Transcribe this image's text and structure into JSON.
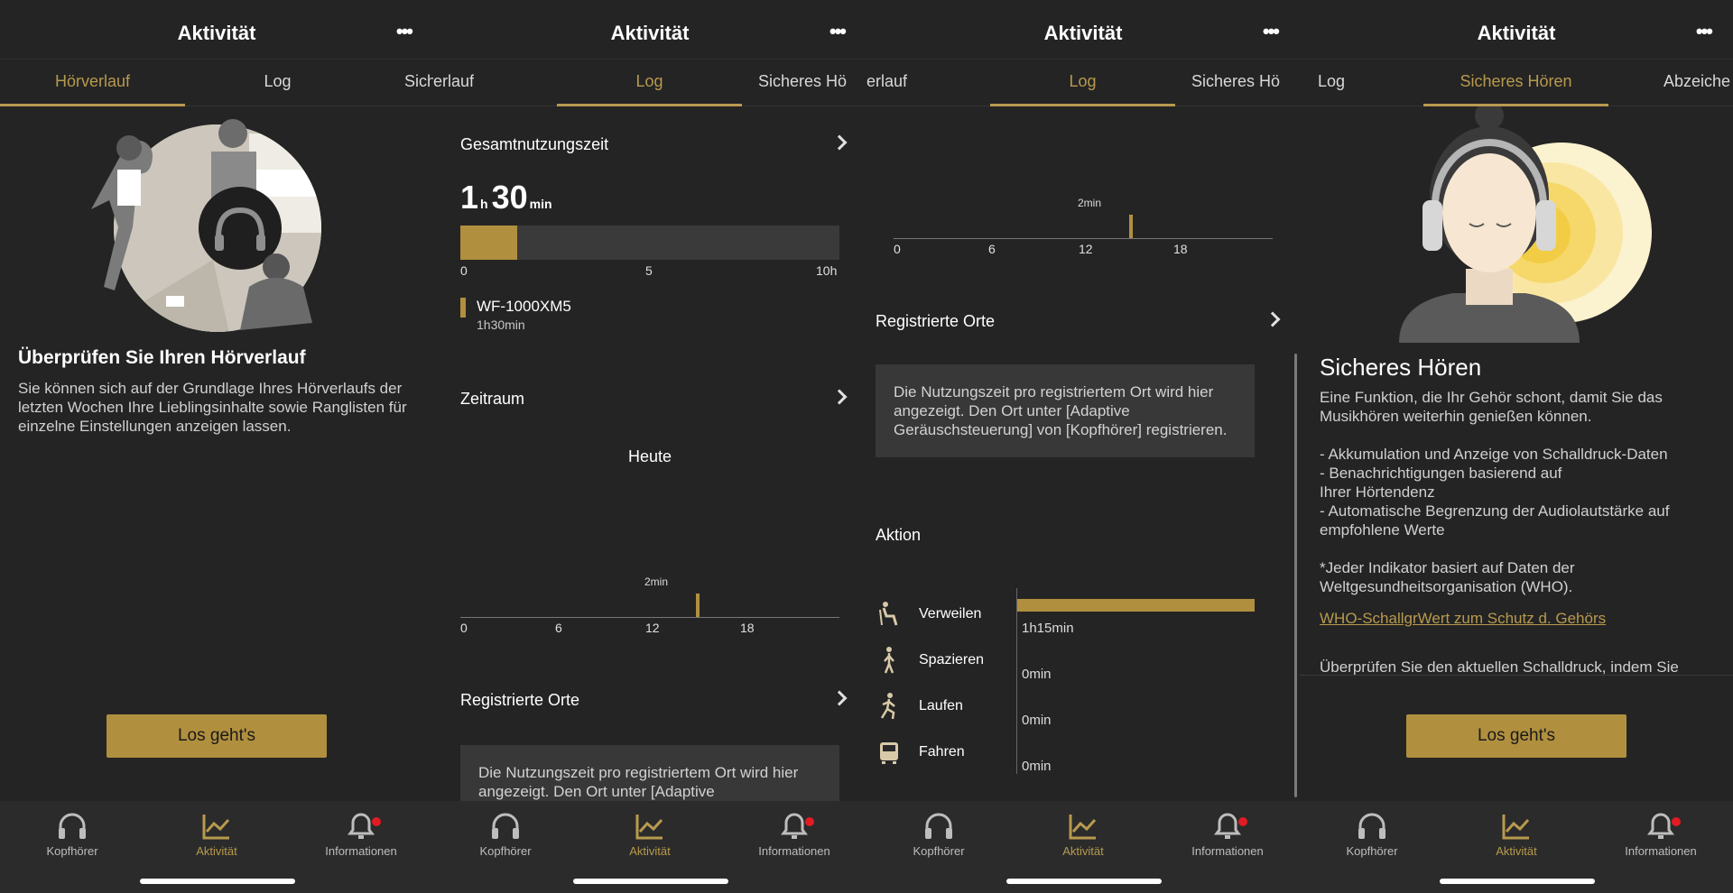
{
  "header": {
    "title": "Aktivität",
    "more": "•••"
  },
  "screens": [
    {
      "tabs": [
        {
          "label": "Hörverlauf",
          "active": true
        },
        {
          "label": "Log",
          "active": false
        },
        {
          "label": "Sich",
          "active": false
        }
      ],
      "heading": "Überprüfen Sie Ihren Hörverlauf",
      "body": "Sie können sich auf der Grundlage Ihres Hörverlaufs der letzten Wochen Ihre Lieblingsinhalte sowie Ranglisten für einzelne Einstellungen anzeigen lassen.",
      "button": "Los geht's"
    },
    {
      "tabs": [
        {
          "label": "Hörverlauf",
          "active": false
        },
        {
          "label": "Log",
          "active": true
        },
        {
          "label": "Sicheres Hö",
          "active": false
        }
      ],
      "total_title": "Gesamtnutzungszeit",
      "total": {
        "hours": "1",
        "h_unit": "h",
        "minutes": "30",
        "min_unit": "min"
      },
      "usage": {
        "fraction": 0.15,
        "ticks": [
          "0",
          "5",
          "10h"
        ]
      },
      "device": {
        "name": "WF-1000XM5",
        "time": "1h30min"
      },
      "period_title": "Zeitraum",
      "period_value": "Heute",
      "timeline": {
        "spike_label": "2min",
        "ticks": [
          "0",
          "6",
          "12",
          "18"
        ],
        "spike_hour": 15
      },
      "places_title": "Registrierte Orte",
      "places_text": "Die Nutzungszeit pro registriertem Ort wird hier angezeigt. Den Ort unter [Adaptive"
    },
    {
      "tabs": [
        {
          "label": "Hörverlauf",
          "active": false
        },
        {
          "label": "Log",
          "active": true
        },
        {
          "label": "Sicheres Hö",
          "active": false
        }
      ],
      "timeline": {
        "spike_label": "2min",
        "ticks": [
          "0",
          "6",
          "12",
          "18"
        ],
        "spike_hour": 15
      },
      "places_title": "Registrierte Orte",
      "places_text": "Die Nutzungszeit pro registriertem Ort wird hier angezeigt. Den Ort unter [Adaptive Geräuschsteuerung] von [Kopfhörer] registrieren.",
      "action_title": "Aktion",
      "actions": [
        {
          "name": "Verweilen",
          "value": "1h15min",
          "fraction": 1.0,
          "icon": "sitting-person-icon"
        },
        {
          "name": "Spazieren",
          "value": "0min",
          "fraction": 0,
          "icon": "walking-person-icon"
        },
        {
          "name": "Laufen",
          "value": "0min",
          "fraction": 0,
          "icon": "running-person-icon"
        },
        {
          "name": "Fahren",
          "value": "0min",
          "fraction": 0,
          "icon": "train-icon"
        }
      ]
    },
    {
      "tabs": [
        {
          "label": "Log",
          "active": false
        },
        {
          "label": "Sicheres Hören",
          "active": true
        },
        {
          "label": "Abzeiche",
          "active": false
        }
      ],
      "heading": "Sicheres Hören",
      "body": "Eine Funktion, die Ihr Gehör schont, damit Sie das Musikhören weiterhin genießen können.\n\n- Akkumulation und Anzeige von Schalldruck-Daten\n- Benachrichtigungen basierend auf\nIhrer Hörtendenz\n- Automatische Begrenzung der Audiolautstärke auf empfohlene Werte\n\n*Jeder Indikator basiert auf Daten der Weltgesundheitsorganisation (WHO).",
      "link": "WHO-SchallgrWert zum Schutz d. Gehörs",
      "more_text": "Überprüfen Sie den aktuellen Schalldruck, indem Sie",
      "button": "Los geht's"
    }
  ],
  "nav": [
    {
      "label": "Kopfhörer",
      "icon": "headphones-icon",
      "active": false
    },
    {
      "label": "Aktivität",
      "icon": "activity-chart-icon",
      "active": true
    },
    {
      "label": "Informationen",
      "icon": "bell-icon",
      "active": false,
      "badge": true
    }
  ],
  "colors": {
    "accent": "#b08f3e",
    "background": "#242424",
    "badge": "#e01b24"
  }
}
